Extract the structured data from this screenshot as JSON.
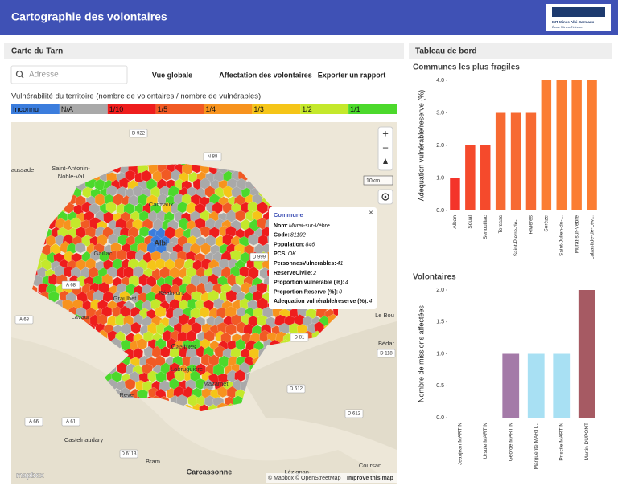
{
  "header": {
    "title": "Cartographie des volontaires",
    "logo": [
      "IMT Mines Albi-Carmaux",
      "École Mines-Télécom"
    ]
  },
  "map_panel": {
    "title": "Carte du Tarn",
    "search_placeholder": "Adresse",
    "buttons": [
      "Vue globale",
      "Affectation des volontaires",
      "Exporter un rapport"
    ],
    "legend_title": "Vulnérabilité du territoire (nombre de volontaires / nombre de vulnérables):",
    "legend": [
      {
        "label": "Inconnu",
        "color": "#3b7ddd"
      },
      {
        "label": "N/A",
        "color": "#a9a9a9"
      },
      {
        "label": "1/10",
        "color": "#ee1d1d"
      },
      {
        "label": "1/5",
        "color": "#f15a24"
      },
      {
        "label": "1/4",
        "color": "#f7931e"
      },
      {
        "label": "1/3",
        "color": "#f5c518"
      },
      {
        "label": "1/2",
        "color": "#c4e82b"
      },
      {
        "label": "1/1",
        "color": "#4cd92c"
      }
    ]
  },
  "map": {
    "labels": [
      "D 922",
      "Saint-Antonin-",
      "Noble-Val",
      "aussade",
      "N 88",
      "Carmaux",
      "Albi",
      "Gaillac",
      "D 999",
      "A 68",
      "Graulhet",
      "Réalmont",
      "Lavaur",
      "A 68",
      "Castres",
      "Labruguière",
      "Mazamet",
      "D 612",
      "Revel",
      "D 612",
      "A 66",
      "A 61",
      "Castelnaudary",
      "D 6113",
      "Bram",
      "Carcassonne",
      "Lézignan-",
      "Coursan",
      "Bédar",
      "D 118",
      "Le Bou",
      "D 81"
    ],
    "zoom_in": "+",
    "zoom_out": "−",
    "scale": "10km",
    "mapbox_logo": "mapbox",
    "attribution": "© Mapbox © OpenStreetMap",
    "improve": "Improve this map"
  },
  "popup": {
    "title": "Commune",
    "close": "×",
    "fields": [
      {
        "key": "Nom:",
        "value": "Murat-sur-Vèbre"
      },
      {
        "key": "Code:",
        "value": "81192"
      },
      {
        "key": "Population:",
        "value": "846"
      },
      {
        "key": "PCS:",
        "value": "OK"
      },
      {
        "key": "PersonnesVulnerables:",
        "value": "41"
      },
      {
        "key": "ReserveCivile:",
        "value": "2"
      },
      {
        "key": "Proportion vulnerable (%):",
        "value": "4"
      },
      {
        "key": "Proportion Reserve (%):",
        "value": "0"
      },
      {
        "key": "Adequation vulnérable/reserve (%):",
        "value": "4"
      }
    ]
  },
  "dashboard": {
    "title": "Tableau de bord"
  },
  "chart_data": [
    {
      "type": "bar",
      "title": "Communes les plus fragiles",
      "y_label": "Adequation vulnérable/reserve (%)",
      "categories": [
        "Alban",
        "Soual",
        "Senouillac",
        "Terssac",
        "Saint-Pierre-de-...",
        "Rivières",
        "Sorèze",
        "Saint-Julien-du-...",
        "Murat-sur-Vèbre",
        "Labastide-de-Lév..."
      ],
      "values": [
        1,
        2,
        2,
        3,
        3,
        3,
        4,
        4,
        4,
        4
      ],
      "colors": [
        "#f4342a",
        "#f54a2c",
        "#f54a2c",
        "#f76a32",
        "#f76a32",
        "#f76a32",
        "#fb7d32",
        "#fb7d32",
        "#fb7d32",
        "#fb7d32"
      ],
      "ylim": [
        0,
        4
      ],
      "yticks": [
        {
          "value": 0,
          "label": "0.0"
        },
        {
          "value": 1,
          "label": "1.0"
        },
        {
          "value": 2,
          "label": "2.0"
        },
        {
          "value": 3,
          "label": "3.0"
        },
        {
          "value": 4,
          "label": "4.0"
        }
      ]
    },
    {
      "type": "bar",
      "title": "Volontaires",
      "y_label": "Nombre de missions affectées",
      "categories": [
        "Jeanjean MARTIN",
        "Ursule MARTIN",
        "George MARTIN",
        "Marguerite MARTI...",
        "Priscile MARTIN",
        "Martin DUPONT"
      ],
      "values": [
        0,
        0,
        1,
        1,
        1,
        2
      ],
      "colors": [
        "#a47aa8",
        "#a47aa8",
        "#a47aa8",
        "#a8e0f3",
        "#a8e0f3",
        "#a65a63"
      ],
      "ylim": [
        0,
        2
      ],
      "yticks": [
        {
          "value": 0,
          "label": "0.0"
        },
        {
          "value": 0.5,
          "label": "0.5"
        },
        {
          "value": 1,
          "label": "1.0"
        },
        {
          "value": 1.5,
          "label": "1.5"
        },
        {
          "value": 2,
          "label": "2.0"
        }
      ]
    }
  ]
}
